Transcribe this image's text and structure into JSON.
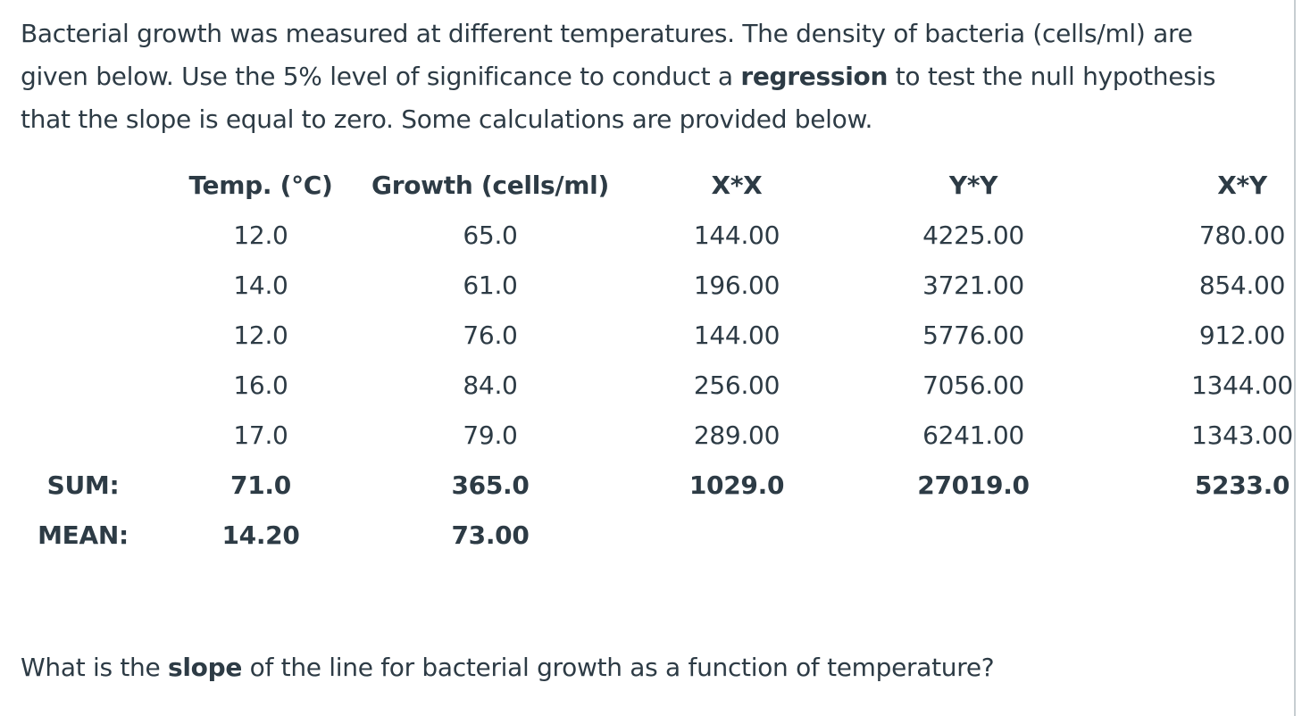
{
  "intro": {
    "line1": "Bacterial growth was measured at different temperatures. The density of bacteria (cells/ml) are",
    "line2_pre": "given below.  Use the 5% level of significance to conduct a ",
    "line2_bold": "regression",
    "line2_post": " to test the null hypothesis",
    "line3": "that the slope is equal to zero.  Some calculations are provided below."
  },
  "table": {
    "headers": [
      "Temp. (°C)",
      "Growth (cells/ml)",
      "X*X",
      "Y*Y",
      "X*Y"
    ],
    "rows": [
      [
        "12.0",
        "65.0",
        "144.00",
        "4225.00",
        "780.00"
      ],
      [
        "14.0",
        "61.0",
        "196.00",
        "3721.00",
        "854.00"
      ],
      [
        "12.0",
        "76.0",
        "144.00",
        "5776.00",
        "912.00"
      ],
      [
        "16.0",
        "84.0",
        "256.00",
        "7056.00",
        "1344.00"
      ],
      [
        "17.0",
        "79.0",
        "289.00",
        "6241.00",
        "1343.00"
      ]
    ],
    "sum": {
      "label": "SUM:",
      "values": [
        "71.0",
        "365.0",
        "1029.0",
        "27019.0",
        "5233.0"
      ]
    },
    "mean": {
      "label": "MEAN:",
      "values": [
        "14.20",
        "73.00"
      ]
    }
  },
  "question": {
    "pre": "What is the ",
    "bold": "slope",
    "post": " of the line for bacterial growth as a function of temperature?"
  }
}
